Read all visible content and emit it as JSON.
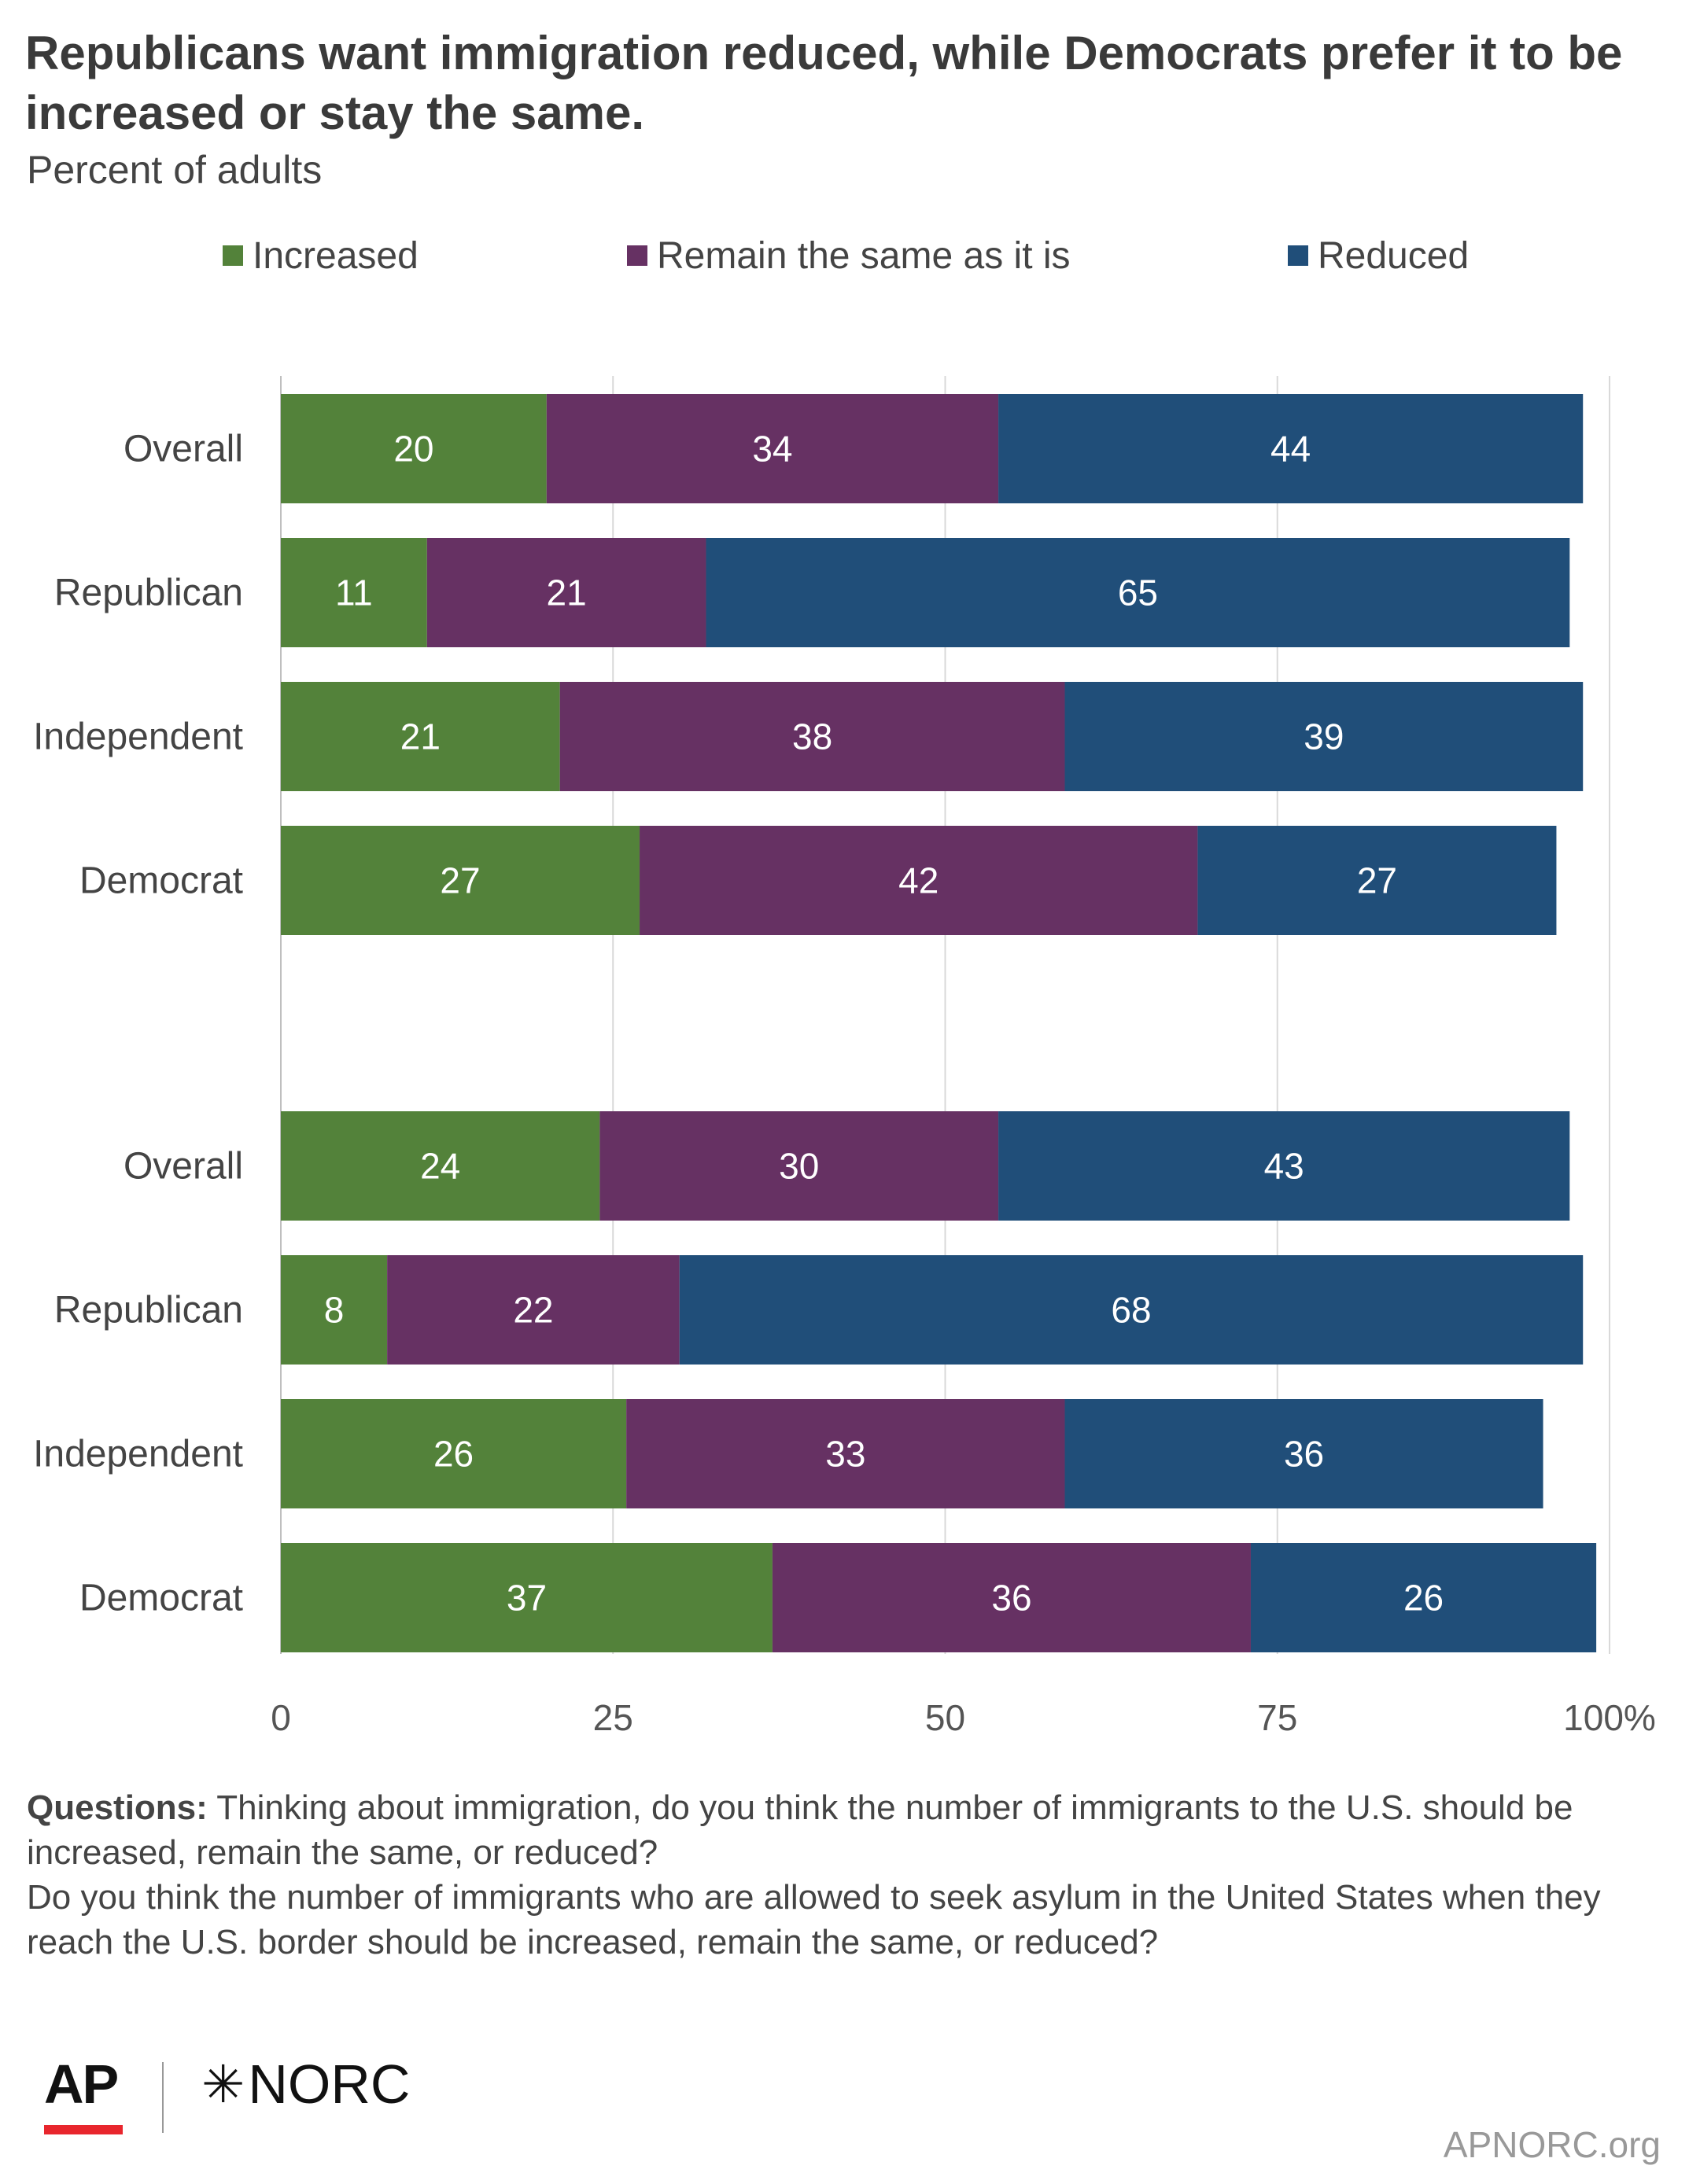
{
  "header": {
    "title": "Republicans want immigration reduced, while Democrats prefer it to be increased or stay the same.",
    "subtitle": "Percent of adults"
  },
  "legend": [
    {
      "label": "Increased",
      "color": "#53823a"
    },
    {
      "label": "Remain the same as it is",
      "color": "#663163"
    },
    {
      "label": "Reduced",
      "color": "#204e79"
    }
  ],
  "chart_data": {
    "type": "bar",
    "orientation": "horizontal",
    "stacked": true,
    "groups": [
      {
        "rows": [
          {
            "category": "Overall",
            "values": [
              20,
              34,
              44
            ]
          },
          {
            "category": "Republican",
            "values": [
              11,
              21,
              65
            ]
          },
          {
            "category": "Independent",
            "values": [
              21,
              38,
              39
            ]
          },
          {
            "category": "Democrat",
            "values": [
              27,
              42,
              27
            ]
          }
        ]
      },
      {
        "rows": [
          {
            "category": "Overall",
            "values": [
              24,
              30,
              43
            ]
          },
          {
            "category": "Republican",
            "values": [
              8,
              22,
              68
            ]
          },
          {
            "category": "Independent",
            "values": [
              26,
              33,
              36
            ]
          },
          {
            "category": "Democrat",
            "values": [
              37,
              36,
              26
            ]
          }
        ]
      }
    ],
    "series": [
      {
        "name": "Increased",
        "color": "#53823a"
      },
      {
        "name": "Remain the same as it is",
        "color": "#663163"
      },
      {
        "name": "Reduced",
        "color": "#204e79"
      }
    ],
    "xlim": [
      0,
      100
    ],
    "xticks": [
      "0",
      "25",
      "50",
      "75",
      "100%"
    ],
    "grid": true,
    "legend_position": "top"
  },
  "footer": {
    "questions_label": "Questions:",
    "question_1": "Thinking about immigration, do you think the number of immigrants to the U.S. should be increased, remain the same, or reduced?",
    "question_2": "Do you think the number of immigrants who are allowed to seek asylum in the United States when they reach the U.S. border should be increased, remain the same, or reduced?"
  },
  "logos": {
    "ap": "AP",
    "norc_star": "✳",
    "norc": "NORC"
  },
  "site": "APNORC.org"
}
